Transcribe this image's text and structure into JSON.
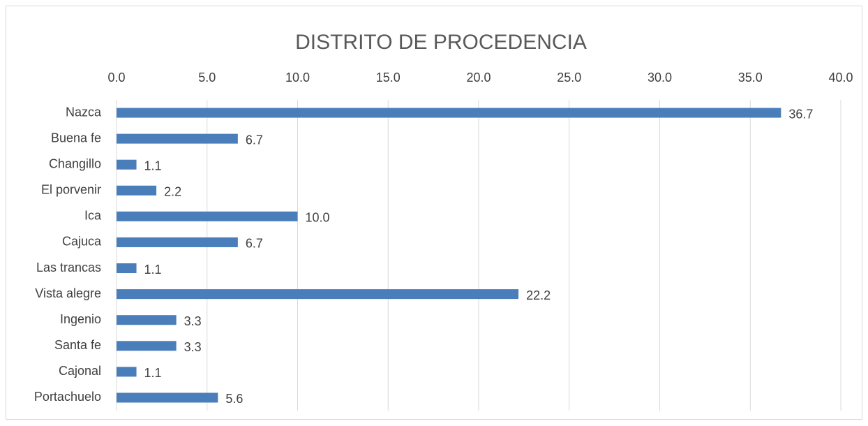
{
  "chart_data": {
    "type": "bar",
    "orientation": "horizontal",
    "title": "DISTRITO DE PROCEDENCIA",
    "categories": [
      "Nazca",
      "Buena fe",
      "Changillo",
      "El porvenir",
      "Ica",
      "Cajuca",
      "Las trancas",
      "Vista alegre",
      "Ingenio",
      "Santa fe",
      "Cajonal",
      "Portachuelo"
    ],
    "values": [
      36.7,
      6.7,
      1.1,
      2.2,
      10.0,
      6.7,
      1.1,
      22.2,
      3.3,
      3.3,
      1.1,
      5.6
    ],
    "value_labels": [
      "36.7",
      "6.7",
      "1.1",
      "2.2",
      "10.0",
      "6.7",
      "1.1",
      "22.2",
      "3.3",
      "3.3",
      "1.1",
      "5.6"
    ],
    "color": "#4a7ebb",
    "xlim": [
      0,
      40
    ],
    "xticks": [
      {
        "value": 0,
        "label": "0.0"
      },
      {
        "value": 5,
        "label": "5.0"
      },
      {
        "value": 10,
        "label": "10.0"
      },
      {
        "value": 15,
        "label": "15.0"
      },
      {
        "value": 20,
        "label": "20.0"
      },
      {
        "value": 25,
        "label": "25.0"
      },
      {
        "value": 30,
        "label": "30.0"
      },
      {
        "value": 35,
        "label": "35.0"
      },
      {
        "value": 40,
        "label": "40.0"
      }
    ],
    "grid": true
  }
}
